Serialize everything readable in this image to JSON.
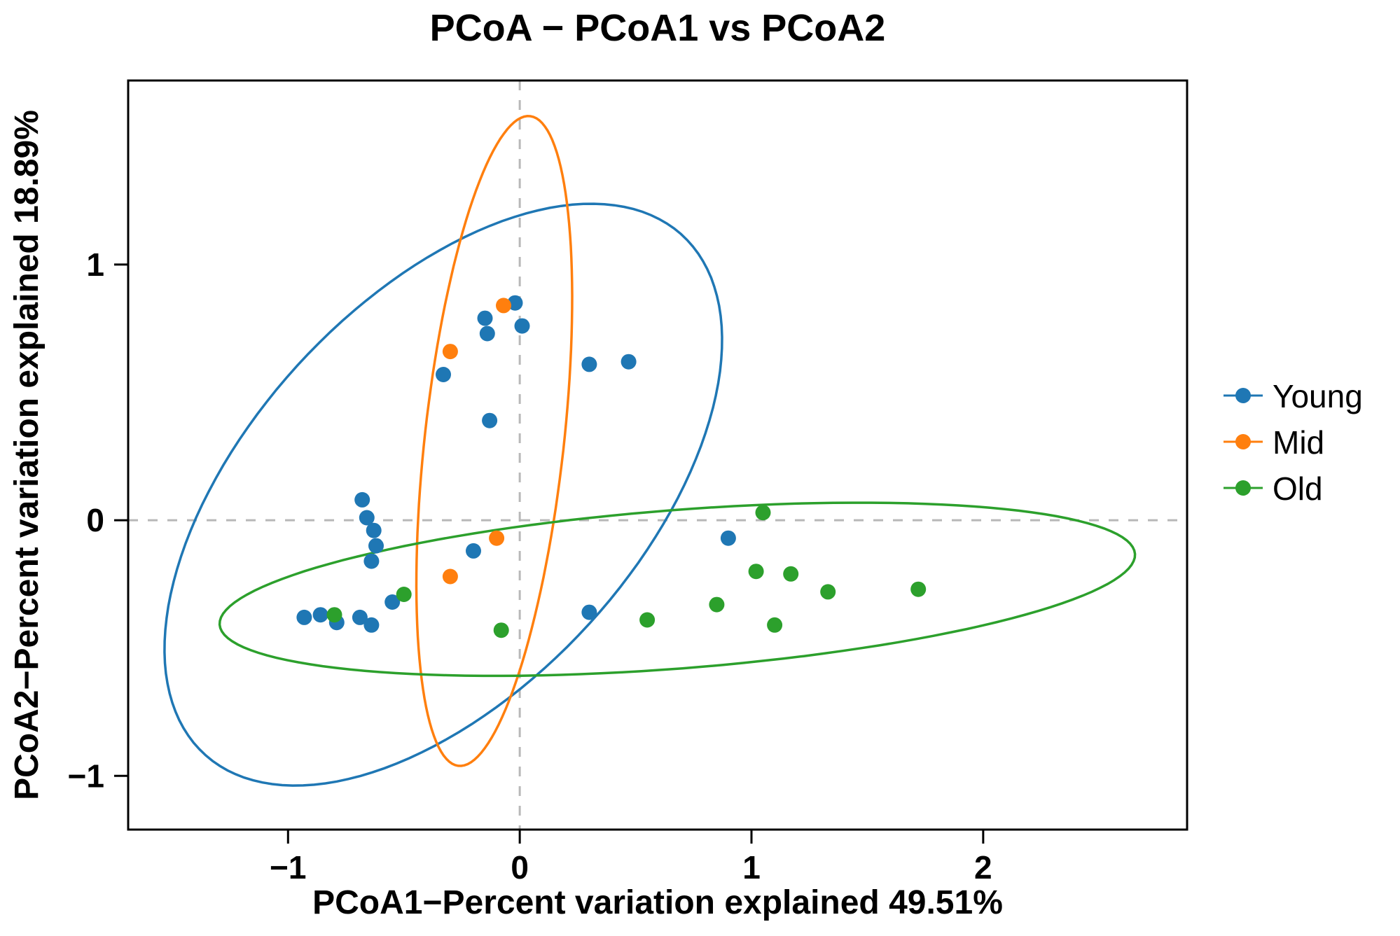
{
  "chart_data": {
    "type": "scatter",
    "title": "PCoA − PCoA1 vs PCoA2",
    "xlabel": "PCoA1−Percent variation explained 49.51%",
    "ylabel": "PCoA2−Percent variation explained 18.89%",
    "xdomain": [
      -1.69,
      2.88
    ],
    "ydomain": [
      -1.21,
      1.72
    ],
    "xticks": {
      "values": [
        -1,
        0,
        1,
        2
      ],
      "labels": [
        "−1",
        "0",
        "1",
        "2"
      ]
    },
    "yticks": {
      "values": [
        -1,
        0,
        1
      ],
      "labels": [
        "−1",
        "0",
        "1"
      ]
    },
    "zero_lines": {
      "x": 0,
      "y": 0,
      "color": "#b8b8b8",
      "style": "dashed"
    },
    "grid": "off",
    "legend_position": "right",
    "series": [
      {
        "name": "Young",
        "color": "#1f77b4",
        "points": [
          [
            -0.02,
            0.85
          ],
          [
            0.01,
            0.76
          ],
          [
            -0.15,
            0.79
          ],
          [
            -0.14,
            0.73
          ],
          [
            -0.33,
            0.57
          ],
          [
            0.3,
            0.61
          ],
          [
            0.47,
            0.62
          ],
          [
            -0.13,
            0.39
          ],
          [
            -0.68,
            0.08
          ],
          [
            -0.66,
            0.01
          ],
          [
            -0.63,
            -0.04
          ],
          [
            -0.62,
            -0.1
          ],
          [
            -0.64,
            -0.16
          ],
          [
            -0.2,
            -0.12
          ],
          [
            -0.55,
            -0.32
          ],
          [
            -0.93,
            -0.38
          ],
          [
            -0.86,
            -0.37
          ],
          [
            -0.79,
            -0.4
          ],
          [
            -0.69,
            -0.38
          ],
          [
            -0.64,
            -0.41
          ],
          [
            0.3,
            -0.36
          ],
          [
            0.9,
            -0.07
          ]
        ]
      },
      {
        "name": "Mid",
        "color": "#ff7f0e",
        "points": [
          [
            -0.07,
            0.84
          ],
          [
            -0.3,
            0.66
          ],
          [
            -0.1,
            -0.07
          ],
          [
            -0.3,
            -0.22
          ]
        ]
      },
      {
        "name": "Old",
        "color": "#2ca02c",
        "points": [
          [
            1.05,
            0.03
          ],
          [
            1.02,
            -0.2
          ],
          [
            1.17,
            -0.21
          ],
          [
            1.33,
            -0.28
          ],
          [
            1.72,
            -0.27
          ],
          [
            0.85,
            -0.33
          ],
          [
            0.55,
            -0.39
          ],
          [
            1.1,
            -0.41
          ],
          [
            -0.5,
            -0.29
          ],
          [
            -0.8,
            -0.37
          ],
          [
            -0.08,
            -0.43
          ]
        ]
      }
    ],
    "ellipses": [
      {
        "series": "Young",
        "color": "#1f77b4",
        "cx": -0.33,
        "cy": 0.1,
        "a": 1.45,
        "b": 0.8,
        "angle": 42
      },
      {
        "series": "Mid",
        "color": "#ff7f0e",
        "cx": -0.11,
        "cy": 0.31,
        "a": 1.28,
        "b": 0.3,
        "angle": 83
      },
      {
        "series": "Old",
        "color": "#2ca02c",
        "cx": 0.68,
        "cy": -0.27,
        "a": 1.98,
        "b": 0.31,
        "angle": 4
      }
    ]
  }
}
